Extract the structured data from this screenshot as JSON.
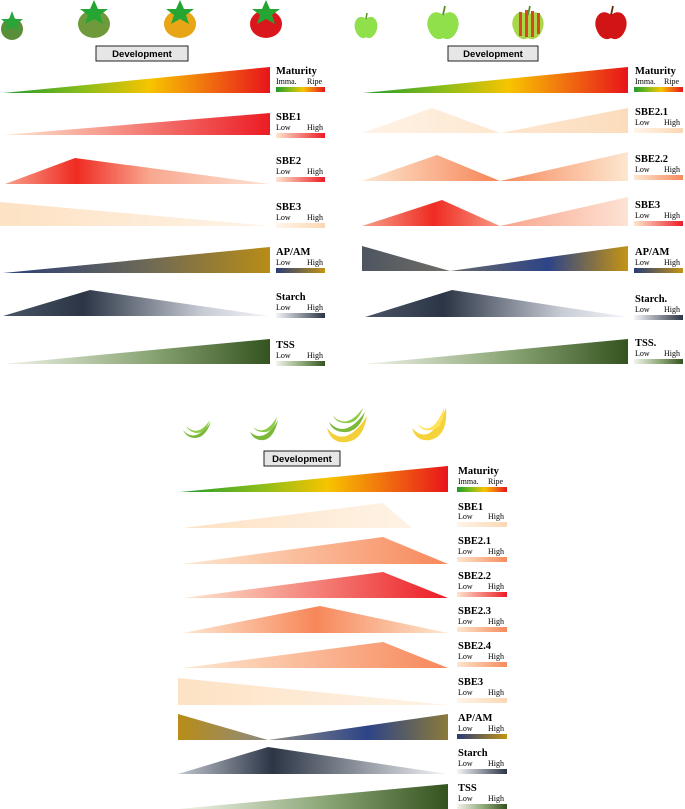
{
  "colors": {
    "green": "#2e9e2a",
    "yellow": "#f7c400",
    "red": "#e8141b",
    "peach": "#fde7cf",
    "salmon": "#f79168",
    "navy": "#283c78",
    "olive": "#b38a1a",
    "slate": "#2b3545",
    "forest": "#3a5a23"
  },
  "panels": [
    {
      "fruit": "tomato",
      "development_label": "Development",
      "icons": [
        "small-green-tomato-icon",
        "green-tomato-icon",
        "orange-tomato-icon",
        "red-tomato-icon"
      ],
      "rows": [
        {
          "title": "Maturity",
          "low": "Imma.",
          "high": "Ripe",
          "grad": "maturity"
        },
        {
          "title": "SBE1",
          "low": "Low",
          "high": "High",
          "grad": "red"
        },
        {
          "title": "SBE2",
          "low": "Low",
          "high": "High",
          "grad": "red"
        },
        {
          "title": "SBE3",
          "low": "Low",
          "high": "High",
          "grad": "peach"
        },
        {
          "title": "AP/AM",
          "low": "Low",
          "high": "High",
          "grad": "apam"
        },
        {
          "title": "Starch",
          "low": "Low",
          "high": "High",
          "grad": "starch"
        },
        {
          "title": "TSS",
          "low": "Low",
          "high": "High",
          "grad": "tss"
        }
      ]
    },
    {
      "fruit": "apple",
      "development_label": "Development",
      "icons": [
        "small-green-apple-icon",
        "green-apple-icon",
        "striped-apple-icon",
        "red-apple-icon"
      ],
      "rows": [
        {
          "title": "Maturity",
          "low": "Imma.",
          "high": "Ripe",
          "grad": "maturity"
        },
        {
          "title": "SBE2.1",
          "low": "Low",
          "high": "High",
          "grad": "peach"
        },
        {
          "title": "SBE2.2",
          "low": "Low",
          "high": "High",
          "grad": "salmon"
        },
        {
          "title": "SBE3",
          "low": "Low",
          "high": "High",
          "grad": "red"
        },
        {
          "title": "AP/AM",
          "low": "Low",
          "high": "High",
          "grad": "apam"
        },
        {
          "title": "Starch.",
          "low": "Low",
          "high": "High",
          "grad": "starch"
        },
        {
          "title": "TSS.",
          "low": "Low",
          "high": "High",
          "grad": "tss"
        }
      ]
    },
    {
      "fruit": "banana",
      "development_label": "Development",
      "icons": [
        "green-banana-icon",
        "green-banana-bunch-icon",
        "yellow-green-banana-icon",
        "yellow-banana-icon"
      ],
      "rows": [
        {
          "title": "Maturity",
          "low": "Imma.",
          "high": "Ripe",
          "grad": "maturity"
        },
        {
          "title": "SBE1",
          "low": "Low",
          "high": "High",
          "grad": "peach"
        },
        {
          "title": "SBE2.1",
          "low": "Low",
          "high": "High",
          "grad": "salmon"
        },
        {
          "title": "SBE2.2",
          "low": "Low",
          "high": "High",
          "grad": "red"
        },
        {
          "title": "SBE2.3",
          "low": "Low",
          "high": "High",
          "grad": "salmon"
        },
        {
          "title": "SBE2.4",
          "low": "Low",
          "high": "High",
          "grad": "salmon"
        },
        {
          "title": "SBE3",
          "low": "Low",
          "high": "High",
          "grad": "peach"
        },
        {
          "title": "AP/AM",
          "low": "Low",
          "high": "High",
          "grad": "apam"
        },
        {
          "title": "Starch",
          "low": "Low",
          "high": "High",
          "grad": "starch"
        },
        {
          "title": "TSS",
          "low": "Low",
          "high": "High",
          "grad": "tss"
        }
      ]
    }
  ]
}
